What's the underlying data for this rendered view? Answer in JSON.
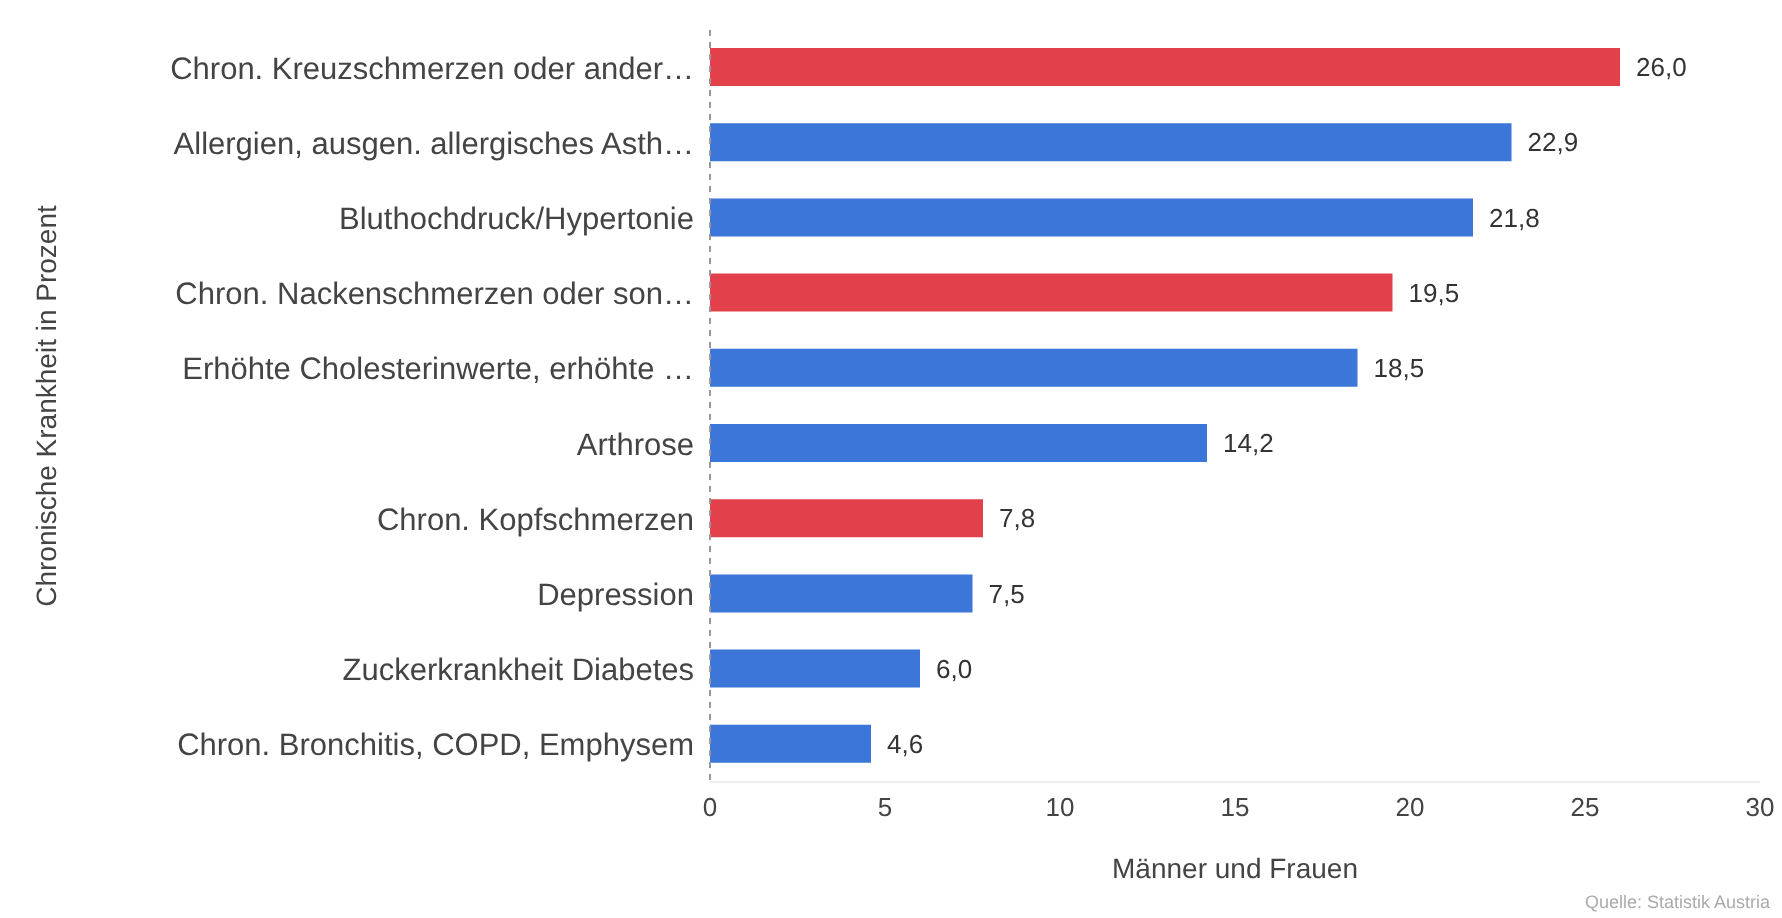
{
  "chart_data": {
    "type": "bar",
    "orientation": "horizontal",
    "xlabel": "Männer und Frauen",
    "ylabel": "Chronische Krankheit in Prozent",
    "categories": [
      "Chron. Kreuzschmerzen oder ander…",
      "Allergien, ausgen. allergisches Asth…",
      "Bluthochdruck/Hypertonie",
      "Chron. Nackenschmerzen oder son…",
      "Erhöhte Cholesterinwerte, erhöhte …",
      "Arthrose",
      "Chron. Kopfschmerzen",
      "Depression",
      "Zuckerkrankheit Diabetes",
      "Chron. Bronchitis, COPD, Emphysem"
    ],
    "values": [
      26.0,
      22.9,
      21.8,
      19.5,
      18.5,
      14.2,
      7.8,
      7.5,
      6.0,
      4.6
    ],
    "value_labels": [
      "26,0",
      "22,9",
      "21,8",
      "19,5",
      "18,5",
      "14,2",
      "7,8",
      "7,5",
      "6,0",
      "4,6"
    ],
    "colors": [
      "#e2414c",
      "#3b76d8",
      "#3b76d8",
      "#e2414c",
      "#3b76d8",
      "#3b76d8",
      "#e2414c",
      "#3b76d8",
      "#3b76d8",
      "#3b76d8"
    ],
    "xlim": [
      0,
      30
    ],
    "xticks": [
      0,
      5,
      10,
      15,
      20,
      25,
      30
    ],
    "grid": false,
    "legend": false,
    "annotations": [
      "Quelle: Statistik Austria"
    ]
  }
}
